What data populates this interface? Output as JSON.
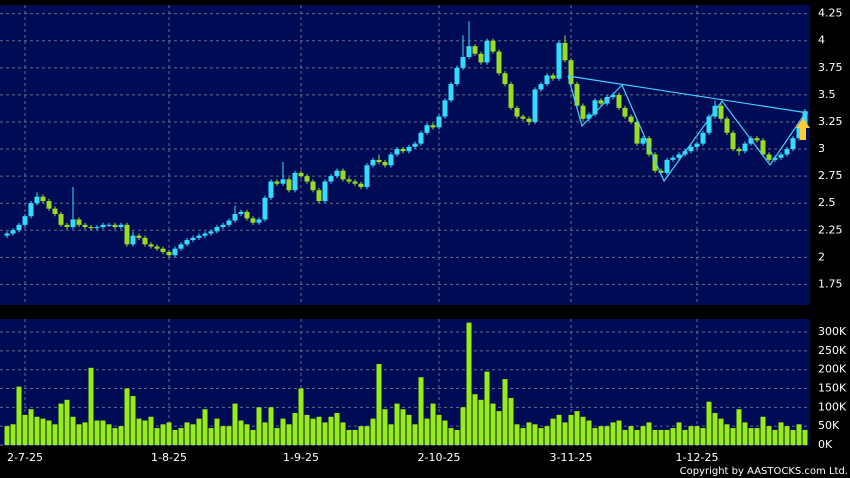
{
  "chart_data": {
    "type": "candlestick",
    "categories": [
      null,
      null,
      null,
      "2-7-25",
      null,
      null,
      null,
      null,
      null,
      null,
      null,
      null,
      null,
      null,
      null,
      null,
      null,
      null,
      null,
      null,
      null,
      null,
      null,
      null,
      null,
      null,
      null,
      "1-8-25",
      null,
      null,
      null,
      null,
      null,
      null,
      null,
      null,
      null,
      null,
      null,
      null,
      null,
      null,
      null,
      null,
      null,
      null,
      null,
      null,
      null,
      "1-9-25",
      null,
      null,
      null,
      null,
      null,
      null,
      null,
      null,
      null,
      null,
      null,
      null,
      null,
      null,
      null,
      null,
      null,
      null,
      null,
      null,
      null,
      null,
      "2-10-25",
      null,
      null,
      null,
      null,
      null,
      null,
      null,
      null,
      null,
      null,
      null,
      null,
      null,
      null,
      null,
      null,
      null,
      null,
      null,
      null,
      null,
      "3-11-25",
      null,
      null,
      null,
      null,
      null,
      null,
      null,
      null,
      null,
      null,
      null,
      null,
      null,
      null,
      null,
      null,
      null,
      null,
      null,
      null,
      "1-12-25",
      null,
      null,
      null,
      null,
      null,
      null,
      null,
      null,
      null,
      null,
      null,
      null,
      null,
      null,
      null,
      null,
      null,
      null
    ],
    "candles": [
      [
        2.2,
        2.24,
        2.18,
        2.22
      ],
      [
        2.22,
        2.27,
        2.2,
        2.25
      ],
      [
        2.25,
        2.32,
        2.23,
        2.3
      ],
      [
        2.3,
        2.4,
        2.28,
        2.38
      ],
      [
        2.38,
        2.52,
        2.36,
        2.5
      ],
      [
        2.5,
        2.6,
        2.48,
        2.56
      ],
      [
        2.56,
        2.58,
        2.5,
        2.52
      ],
      [
        2.52,
        2.54,
        2.43,
        2.45
      ],
      [
        2.45,
        2.47,
        2.38,
        2.4
      ],
      [
        2.4,
        2.42,
        2.28,
        2.3
      ],
      [
        2.3,
        2.32,
        2.26,
        2.28
      ],
      [
        2.28,
        2.65,
        2.26,
        2.35
      ],
      [
        2.35,
        2.37,
        2.28,
        2.3
      ],
      [
        2.3,
        2.32,
        2.26,
        2.28
      ],
      [
        2.28,
        2.3,
        2.25,
        2.27
      ],
      [
        2.27,
        2.3,
        2.25,
        2.28
      ],
      [
        2.28,
        2.32,
        2.26,
        2.3
      ],
      [
        2.3,
        2.32,
        2.28,
        2.3
      ],
      [
        2.3,
        2.32,
        2.26,
        2.28
      ],
      [
        2.28,
        2.32,
        2.26,
        2.3
      ],
      [
        2.3,
        2.32,
        2.1,
        2.12
      ],
      [
        2.12,
        2.24,
        2.1,
        2.2
      ],
      [
        2.2,
        2.22,
        2.16,
        2.18
      ],
      [
        2.18,
        2.2,
        2.1,
        2.12
      ],
      [
        2.12,
        2.14,
        2.08,
        2.1
      ],
      [
        2.1,
        2.12,
        2.06,
        2.08
      ],
      [
        2.08,
        2.1,
        2.03,
        2.05
      ],
      [
        2.05,
        2.07,
        2.0,
        2.02
      ],
      [
        2.02,
        2.1,
        2.0,
        2.08
      ],
      [
        2.08,
        2.14,
        2.06,
        2.12
      ],
      [
        2.12,
        2.18,
        2.1,
        2.16
      ],
      [
        2.16,
        2.2,
        2.14,
        2.18
      ],
      [
        2.18,
        2.22,
        2.16,
        2.2
      ],
      [
        2.2,
        2.24,
        2.18,
        2.22
      ],
      [
        2.22,
        2.26,
        2.2,
        2.24
      ],
      [
        2.24,
        2.3,
        2.22,
        2.28
      ],
      [
        2.28,
        2.32,
        2.26,
        2.3
      ],
      [
        2.3,
        2.36,
        2.28,
        2.34
      ],
      [
        2.34,
        2.48,
        2.32,
        2.4
      ],
      [
        2.4,
        2.44,
        2.38,
        2.42
      ],
      [
        2.42,
        2.44,
        2.34,
        2.36
      ],
      [
        2.36,
        2.38,
        2.3,
        2.32
      ],
      [
        2.32,
        2.37,
        2.3,
        2.35
      ],
      [
        2.35,
        2.57,
        2.33,
        2.55
      ],
      [
        2.55,
        2.72,
        2.53,
        2.7
      ],
      [
        2.7,
        2.72,
        2.66,
        2.68
      ],
      [
        2.68,
        2.88,
        2.66,
        2.72
      ],
      [
        2.72,
        2.74,
        2.6,
        2.62
      ],
      [
        2.62,
        2.8,
        2.6,
        2.78
      ],
      [
        2.78,
        2.8,
        2.73,
        2.75
      ],
      [
        2.75,
        2.77,
        2.68,
        2.7
      ],
      [
        2.7,
        2.72,
        2.6,
        2.62
      ],
      [
        2.62,
        2.64,
        2.5,
        2.52
      ],
      [
        2.52,
        2.72,
        2.5,
        2.7
      ],
      [
        2.7,
        2.77,
        2.68,
        2.75
      ],
      [
        2.75,
        2.82,
        2.73,
        2.8
      ],
      [
        2.8,
        2.82,
        2.7,
        2.72
      ],
      [
        2.72,
        2.74,
        2.68,
        2.7
      ],
      [
        2.7,
        2.72,
        2.66,
        2.68
      ],
      [
        2.68,
        2.7,
        2.63,
        2.65
      ],
      [
        2.65,
        2.87,
        2.63,
        2.85
      ],
      [
        2.85,
        2.92,
        2.83,
        2.9
      ],
      [
        2.9,
        2.95,
        2.86,
        2.88
      ],
      [
        2.88,
        2.9,
        2.83,
        2.85
      ],
      [
        2.85,
        2.97,
        2.83,
        2.95
      ],
      [
        2.95,
        3.02,
        2.93,
        3.0
      ],
      [
        3.0,
        3.02,
        2.96,
        2.98
      ],
      [
        2.98,
        3.04,
        2.96,
        3.02
      ],
      [
        3.02,
        3.07,
        3.0,
        3.05
      ],
      [
        3.05,
        3.17,
        3.03,
        3.15
      ],
      [
        3.15,
        3.24,
        3.13,
        3.22
      ],
      [
        3.22,
        3.24,
        3.18,
        3.2
      ],
      [
        3.2,
        3.32,
        3.18,
        3.3
      ],
      [
        3.3,
        3.47,
        3.28,
        3.45
      ],
      [
        3.45,
        3.62,
        3.43,
        3.6
      ],
      [
        3.6,
        3.77,
        3.58,
        3.75
      ],
      [
        3.75,
        4.05,
        3.73,
        3.85
      ],
      [
        3.85,
        4.18,
        3.83,
        3.95
      ],
      [
        3.95,
        3.97,
        3.86,
        3.88
      ],
      [
        3.88,
        3.9,
        3.78,
        3.8
      ],
      [
        3.8,
        4.02,
        3.78,
        4.0
      ],
      [
        4.0,
        4.02,
        3.88,
        3.9
      ],
      [
        3.9,
        3.92,
        3.68,
        3.7
      ],
      [
        3.7,
        3.72,
        3.58,
        3.6
      ],
      [
        3.6,
        3.62,
        3.36,
        3.38
      ],
      [
        3.38,
        3.4,
        3.28,
        3.3
      ],
      [
        3.3,
        3.32,
        3.26,
        3.28
      ],
      [
        3.28,
        3.3,
        3.22,
        3.25
      ],
      [
        3.25,
        3.57,
        3.23,
        3.55
      ],
      [
        3.55,
        3.62,
        3.53,
        3.6
      ],
      [
        3.6,
        3.7,
        3.58,
        3.68
      ],
      [
        3.68,
        3.7,
        3.63,
        3.65
      ],
      [
        3.65,
        4.0,
        3.63,
        3.98
      ],
      [
        3.98,
        4.05,
        3.8,
        3.82
      ],
      [
        3.82,
        3.84,
        3.58,
        3.6
      ],
      [
        3.6,
        3.62,
        3.38,
        3.4
      ],
      [
        3.4,
        3.42,
        3.26,
        3.28
      ],
      [
        3.28,
        3.34,
        3.26,
        3.32
      ],
      [
        3.32,
        3.47,
        3.3,
        3.45
      ],
      [
        3.45,
        3.47,
        3.4,
        3.42
      ],
      [
        3.42,
        3.5,
        3.4,
        3.48
      ],
      [
        3.48,
        3.52,
        3.46,
        3.5
      ],
      [
        3.5,
        3.52,
        3.36,
        3.38
      ],
      [
        3.38,
        3.4,
        3.28,
        3.3
      ],
      [
        3.3,
        3.32,
        3.23,
        3.25
      ],
      [
        3.25,
        3.27,
        3.03,
        3.05
      ],
      [
        3.05,
        3.12,
        3.03,
        3.1
      ],
      [
        3.1,
        3.12,
        2.93,
        2.95
      ],
      [
        2.95,
        2.97,
        2.78,
        2.8
      ],
      [
        2.8,
        2.82,
        2.76,
        2.78
      ],
      [
        2.78,
        2.92,
        2.76,
        2.9
      ],
      [
        2.9,
        2.94,
        2.88,
        2.92
      ],
      [
        2.92,
        2.97,
        2.9,
        2.95
      ],
      [
        2.95,
        3.0,
        2.93,
        2.98
      ],
      [
        2.98,
        3.04,
        2.96,
        3.02
      ],
      [
        3.02,
        3.07,
        3.0,
        3.05
      ],
      [
        3.05,
        3.17,
        3.03,
        3.15
      ],
      [
        3.15,
        3.32,
        3.13,
        3.3
      ],
      [
        3.3,
        3.45,
        3.28,
        3.4
      ],
      [
        3.4,
        3.42,
        3.26,
        3.28
      ],
      [
        3.28,
        3.3,
        3.13,
        3.15
      ],
      [
        3.15,
        3.17,
        2.98,
        3.0
      ],
      [
        3.0,
        3.02,
        2.94,
        2.98
      ],
      [
        2.98,
        3.07,
        2.96,
        3.05
      ],
      [
        3.05,
        3.12,
        3.03,
        3.1
      ],
      [
        3.1,
        3.12,
        3.06,
        3.08
      ],
      [
        3.08,
        3.1,
        2.93,
        2.95
      ],
      [
        2.95,
        2.97,
        2.88,
        2.9
      ],
      [
        2.9,
        2.94,
        2.88,
        2.92
      ],
      [
        2.92,
        2.97,
        2.9,
        2.95
      ],
      [
        2.95,
        3.02,
        2.93,
        3.0
      ],
      [
        3.0,
        3.12,
        2.98,
        3.1
      ],
      [
        3.1,
        3.22,
        3.08,
        3.2
      ],
      [
        3.2,
        3.37,
        3.18,
        3.35
      ]
    ],
    "up_color": "#33ddff",
    "down_color": "#99dd22",
    "ylim": [
      1.56,
      4.33
    ],
    "yticks": [
      1.75,
      2,
      2.25,
      2.5,
      2.75,
      3,
      3.25,
      3.5,
      3.75,
      4,
      4.25
    ],
    "volume": [
      50000,
      55000,
      155000,
      80000,
      95000,
      75000,
      70000,
      65000,
      55000,
      110000,
      120000,
      75000,
      55000,
      60000,
      205000,
      65000,
      65000,
      55000,
      45000,
      50000,
      150000,
      130000,
      70000,
      65000,
      75000,
      45000,
      55000,
      60000,
      40000,
      45000,
      60000,
      55000,
      70000,
      95000,
      45000,
      70000,
      50000,
      50000,
      110000,
      65000,
      55000,
      40000,
      100000,
      60000,
      100000,
      45000,
      70000,
      55000,
      85000,
      150000,
      80000,
      70000,
      75000,
      60000,
      75000,
      85000,
      60000,
      40000,
      40000,
      50000,
      50000,
      70000,
      215000,
      95000,
      55000,
      110000,
      95000,
      80000,
      55000,
      180000,
      70000,
      110000,
      80000,
      65000,
      45000,
      40000,
      100000,
      325000,
      135000,
      120000,
      195000,
      110000,
      90000,
      175000,
      125000,
      55000,
      45000,
      60000,
      55000,
      45000,
      50000,
      70000,
      80000,
      60000,
      80000,
      90000,
      75000,
      65000,
      45000,
      50000,
      50000,
      60000,
      65000,
      40000,
      50000,
      40000,
      50000,
      60000,
      40000,
      40000,
      40000,
      45000,
      60000,
      40000,
      50000,
      50000,
      45000,
      115000,
      85000,
      70000,
      55000,
      45000,
      95000,
      60000,
      45000,
      45000,
      75000,
      50000,
      40000,
      60000,
      50000,
      40000,
      55000,
      40000
    ],
    "volume_color": "#99ee11",
    "volume_ylim": [
      0,
      332000
    ],
    "volume_ticks": [
      {
        "value": 0,
        "label": "0K"
      },
      {
        "value": 50000,
        "label": "50K"
      },
      {
        "value": 100000,
        "label": "100K"
      },
      {
        "value": 150000,
        "label": "150K"
      },
      {
        "value": 200000,
        "label": "200K"
      },
      {
        "value": 250000,
        "label": "250K"
      },
      {
        "value": 300000,
        "label": "300K"
      }
    ],
    "grid": true,
    "copyright": "Copyright by AASTOCKS.com Ltd."
  }
}
